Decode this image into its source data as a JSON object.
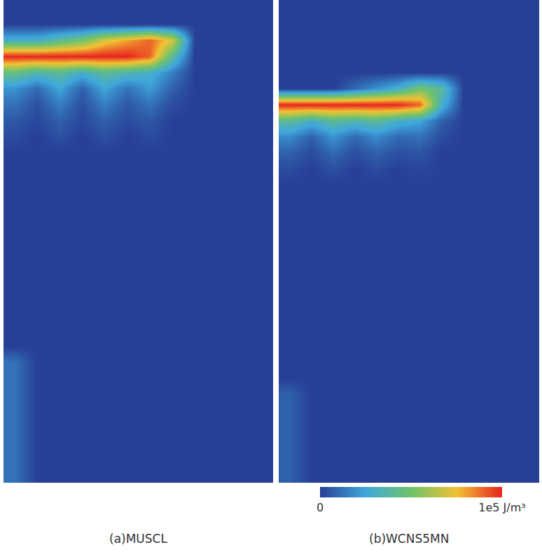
{
  "chart_data": [
    {
      "type": "heatmap",
      "title": "(a)MUSCL",
      "tick_labels": false,
      "colorbar": {
        "range": [
          0,
          100000
        ]
      },
      "cells": [
        [
          0,
          0,
          0,
          0,
          0,
          0,
          0,
          0,
          0,
          0,
          0,
          0
        ],
        [
          0,
          0,
          0,
          0,
          0,
          0,
          0,
          0,
          0,
          0,
          0,
          0
        ],
        [
          30000,
          30000,
          40000,
          50000,
          70000,
          80000,
          90000,
          70000,
          0,
          0,
          0,
          0
        ],
        [
          100000,
          100000,
          100000,
          100000,
          100000,
          100000,
          90000,
          40000,
          0,
          0,
          0,
          0
        ],
        [
          45000,
          35000,
          40000,
          30000,
          40000,
          35000,
          30000,
          15000,
          0,
          0,
          0,
          0
        ],
        [
          20000,
          10000,
          25000,
          8000,
          25000,
          12000,
          22000,
          8000,
          0,
          0,
          0,
          0
        ],
        [
          12000,
          4000,
          15000,
          4000,
          15000,
          6000,
          12000,
          3000,
          0,
          0,
          0,
          0
        ],
        [
          6000,
          2000,
          8000,
          2000,
          8000,
          3000,
          6000,
          0,
          0,
          0,
          0,
          0
        ],
        [
          3000,
          0,
          4000,
          0,
          4000,
          0,
          3000,
          0,
          0,
          0,
          0,
          0
        ],
        [
          0,
          0,
          0,
          0,
          0,
          0,
          0,
          0,
          0,
          0,
          0,
          0
        ],
        [
          0,
          0,
          0,
          0,
          0,
          0,
          0,
          0,
          0,
          0,
          0,
          0
        ],
        [
          0,
          0,
          0,
          0,
          0,
          0,
          0,
          0,
          0,
          0,
          0,
          0
        ],
        [
          0,
          0,
          0,
          0,
          0,
          0,
          0,
          0,
          0,
          0,
          0,
          0
        ],
        [
          0,
          0,
          0,
          0,
          0,
          0,
          0,
          0,
          0,
          0,
          0,
          0
        ],
        [
          0,
          0,
          0,
          0,
          0,
          0,
          0,
          0,
          0,
          0,
          0,
          0
        ],
        [
          0,
          0,
          0,
          0,
          0,
          0,
          0,
          0,
          0,
          0,
          0,
          0
        ],
        [
          0,
          0,
          0,
          0,
          0,
          0,
          0,
          0,
          0,
          0,
          0,
          0
        ],
        [
          0,
          0,
          0,
          0,
          0,
          0,
          0,
          0,
          0,
          0,
          0,
          0
        ],
        [
          0,
          0,
          0,
          0,
          0,
          0,
          0,
          0,
          0,
          0,
          0,
          0
        ],
        [
          0,
          0,
          0,
          0,
          0,
          0,
          0,
          0,
          0,
          0,
          0,
          0
        ],
        [
          0,
          0,
          0,
          0,
          0,
          0,
          0,
          0,
          0,
          0,
          0,
          0
        ],
        [
          0,
          0,
          0,
          0,
          0,
          0,
          0,
          0,
          0,
          0,
          0,
          0
        ],
        [
          12000,
          0,
          0,
          0,
          0,
          0,
          0,
          0,
          0,
          0,
          0,
          0
        ],
        [
          12000,
          0,
          0,
          0,
          0,
          0,
          0,
          0,
          0,
          0,
          0,
          0
        ],
        [
          12000,
          0,
          0,
          0,
          0,
          0,
          0,
          0,
          0,
          0,
          0,
          0
        ],
        [
          12000,
          0,
          0,
          0,
          0,
          0,
          0,
          0,
          0,
          0,
          0,
          0
        ],
        [
          12000,
          0,
          0,
          0,
          0,
          0,
          0,
          0,
          0,
          0,
          0,
          0
        ],
        [
          12000,
          0,
          0,
          0,
          0,
          0,
          0,
          0,
          0,
          0,
          0,
          0
        ],
        [
          12000,
          0,
          0,
          0,
          0,
          0,
          0,
          0,
          0,
          0,
          0,
          0
        ],
        [
          12000,
          0,
          0,
          0,
          0,
          0,
          0,
          0,
          0,
          0,
          0,
          0
        ]
      ]
    },
    {
      "type": "heatmap",
      "title": "(b)WCNS5MN",
      "tick_labels": false,
      "colorbar": {
        "range": [
          0,
          100000
        ],
        "ticks": [
          0,
          {
            "value": 100000,
            "label": "1e5 J/m³"
          }
        ]
      },
      "cells": [
        [
          0,
          0,
          0,
          0,
          0,
          0,
          0,
          0,
          0,
          0,
          0,
          0
        ],
        [
          0,
          0,
          0,
          0,
          0,
          0,
          0,
          0,
          0,
          0,
          0,
          0
        ],
        [
          0,
          0,
          0,
          0,
          0,
          0,
          0,
          0,
          0,
          0,
          0,
          0
        ],
        [
          0,
          0,
          0,
          0,
          0,
          0,
          0,
          0,
          0,
          0,
          0,
          0
        ],
        [
          0,
          0,
          0,
          0,
          0,
          0,
          0,
          0,
          0,
          0,
          0,
          0
        ],
        [
          0,
          0,
          0,
          10000,
          20000,
          30000,
          50000,
          40000,
          0,
          0,
          0,
          0
        ],
        [
          100000,
          100000,
          100000,
          100000,
          100000,
          100000,
          90000,
          30000,
          0,
          0,
          0,
          0
        ],
        [
          40000,
          30000,
          40000,
          35000,
          40000,
          30000,
          25000,
          8000,
          0,
          0,
          0,
          0
        ],
        [
          18000,
          8000,
          20000,
          10000,
          18000,
          10000,
          12000,
          3000,
          0,
          0,
          0,
          0
        ],
        [
          8000,
          3000,
          10000,
          4000,
          8000,
          4000,
          5000,
          0,
          0,
          0,
          0,
          0
        ],
        [
          3000,
          0,
          4000,
          0,
          3000,
          0,
          2000,
          0,
          0,
          0,
          0,
          0
        ],
        [
          0,
          0,
          0,
          0,
          0,
          0,
          0,
          0,
          0,
          0,
          0,
          0
        ],
        [
          0,
          0,
          0,
          0,
          0,
          0,
          0,
          0,
          0,
          0,
          0,
          0
        ],
        [
          0,
          0,
          0,
          0,
          0,
          0,
          0,
          0,
          0,
          0,
          0,
          0
        ],
        [
          0,
          0,
          0,
          0,
          0,
          0,
          0,
          0,
          0,
          0,
          0,
          0
        ],
        [
          0,
          0,
          0,
          0,
          0,
          0,
          0,
          0,
          0,
          0,
          0,
          0
        ],
        [
          0,
          0,
          0,
          0,
          0,
          0,
          0,
          0,
          0,
          0,
          0,
          0
        ],
        [
          0,
          0,
          0,
          0,
          0,
          0,
          0,
          0,
          0,
          0,
          0,
          0
        ],
        [
          0,
          0,
          0,
          0,
          0,
          0,
          0,
          0,
          0,
          0,
          0,
          0
        ],
        [
          0,
          0,
          0,
          0,
          0,
          0,
          0,
          0,
          0,
          0,
          0,
          0
        ],
        [
          0,
          0,
          0,
          0,
          0,
          0,
          0,
          0,
          0,
          0,
          0,
          0
        ],
        [
          0,
          0,
          0,
          0,
          0,
          0,
          0,
          0,
          0,
          0,
          0,
          0
        ],
        [
          0,
          0,
          0,
          0,
          0,
          0,
          0,
          0,
          0,
          0,
          0,
          0
        ],
        [
          0,
          0,
          0,
          0,
          0,
          0,
          0,
          0,
          0,
          0,
          0,
          0
        ],
        [
          8000,
          0,
          0,
          0,
          0,
          0,
          0,
          0,
          0,
          0,
          0,
          0
        ],
        [
          8000,
          0,
          0,
          0,
          0,
          0,
          0,
          0,
          0,
          0,
          0,
          0
        ],
        [
          8000,
          0,
          0,
          0,
          0,
          0,
          0,
          0,
          0,
          0,
          0,
          0
        ],
        [
          8000,
          0,
          0,
          0,
          0,
          0,
          0,
          0,
          0,
          0,
          0,
          0
        ],
        [
          8000,
          0,
          0,
          0,
          0,
          0,
          0,
          0,
          0,
          0,
          0,
          0
        ],
        [
          8000,
          0,
          0,
          0,
          0,
          0,
          0,
          0,
          0,
          0,
          0,
          0
        ]
      ]
    }
  ]
}
